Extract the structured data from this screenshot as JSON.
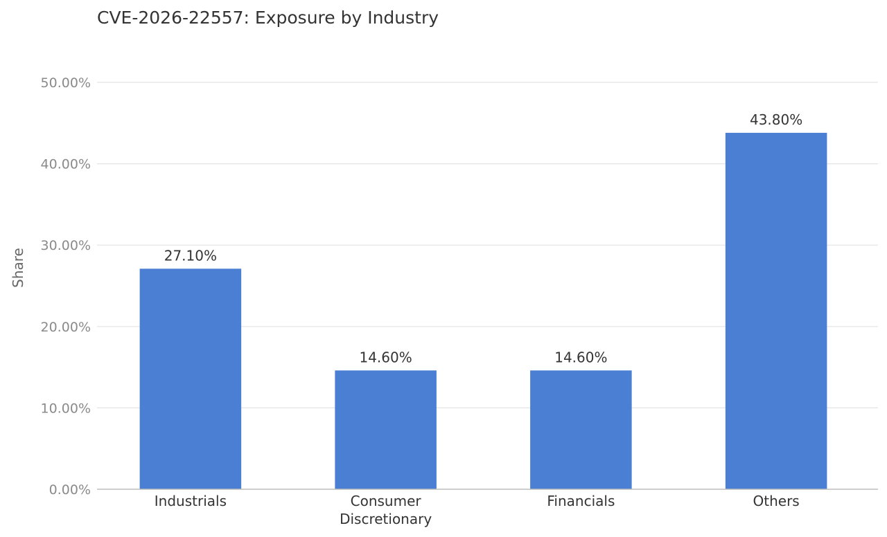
{
  "chart_data": {
    "type": "bar",
    "title": "CVE-2026-22557: Exposure by Industry",
    "xlabel": "",
    "ylabel": "Share",
    "categories": [
      [
        "Industrials"
      ],
      [
        "Consumer",
        "Discretionary"
      ],
      [
        "Financials"
      ],
      [
        "Others"
      ]
    ],
    "values": [
      27.1,
      14.6,
      14.6,
      43.8
    ],
    "value_labels": [
      "27.10%",
      "14.60%",
      "14.60%",
      "43.80%"
    ],
    "ylim": [
      0,
      50
    ],
    "yticks": [
      0,
      10,
      20,
      30,
      40,
      50
    ],
    "ytick_labels": [
      "0.00%",
      "10.00%",
      "20.00%",
      "30.00%",
      "40.00%",
      "50.00%"
    ],
    "grid": true,
    "legend": "none",
    "colors": {
      "bar": "#4a7fd4"
    }
  }
}
